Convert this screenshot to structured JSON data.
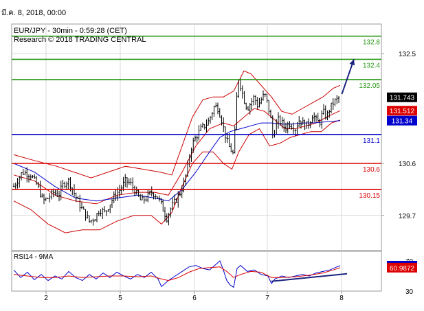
{
  "header": {
    "date_label": "มี.ค. 8, 2018, 00:00",
    "instrument": "EUR/JPY - 30min - 0:59:28 (CET)",
    "source": "Research © 2018 TRADING CENTRAL"
  },
  "chart_data": [
    {
      "type": "candlestick",
      "panel": "price",
      "x_labels": [
        "2",
        "5",
        "6",
        "7",
        "8"
      ],
      "y_ticks": [
        129.7,
        130.6,
        132.5
      ],
      "ylim": [
        129.2,
        132.8
      ],
      "grid": true,
      "current_price": {
        "label": "131.743",
        "value": 131.743,
        "color": "#000000"
      },
      "levels": [
        {
          "label": "132.8",
          "value": 132.8,
          "color": "#2a9a18",
          "label_color": "#2a9a18"
        },
        {
          "label": "132.4",
          "value": 132.4,
          "color": "#2a9a18",
          "label_color": "#2a9a18"
        },
        {
          "label": "132.05",
          "value": 132.05,
          "color": "#2a9a18",
          "label_color": "#2a9a18"
        },
        {
          "label": "131.1",
          "value": 131.1,
          "color": "#0000cc",
          "label_color": "#0000cc"
        },
        {
          "label": "130.6",
          "value": 130.6,
          "color": "#dd0000",
          "label_color": "#dd0000"
        },
        {
          "label": "130.15",
          "value": 130.15,
          "color": "#dd0000",
          "label_color": "#dd0000"
        }
      ],
      "indicator_badges": [
        {
          "label": "131.512",
          "value": 131.512,
          "color": "#dd0000"
        },
        {
          "label": "131.34",
          "value": 131.34,
          "color": "#0000cc"
        }
      ],
      "close_path": [
        [
          0,
          130.2
        ],
        [
          5,
          130.45
        ],
        [
          10,
          130.4
        ],
        [
          14,
          130.2
        ],
        [
          17,
          129.95
        ],
        [
          20,
          130.0
        ],
        [
          23,
          130.1
        ],
        [
          26,
          130.05
        ],
        [
          29,
          130.25
        ],
        [
          32,
          130.3
        ],
        [
          35,
          130.1
        ],
        [
          38,
          129.9
        ],
        [
          41,
          129.75
        ],
        [
          44,
          129.6
        ],
        [
          47,
          129.65
        ],
        [
          50,
          129.8
        ],
        [
          53,
          129.75
        ],
        [
          56,
          129.9
        ],
        [
          59,
          130.05
        ],
        [
          62,
          130.15
        ],
        [
          65,
          130.3
        ],
        [
          68,
          130.25
        ],
        [
          71,
          130.1
        ],
        [
          74,
          129.95
        ],
        [
          77,
          130.0
        ],
        [
          80,
          130.1
        ],
        [
          83,
          130.05
        ],
        [
          85,
          129.95
        ],
        [
          87,
          129.8
        ],
        [
          89,
          129.65
        ],
        [
          91,
          129.8
        ],
        [
          93,
          129.9
        ],
        [
          95,
          130.0
        ],
        [
          97,
          130.1
        ],
        [
          99,
          130.25
        ],
        [
          101,
          130.5
        ],
        [
          103,
          130.85
        ],
        [
          105,
          131.0
        ],
        [
          107,
          131.1
        ],
        [
          109,
          131.2
        ],
        [
          111,
          131.25
        ],
        [
          113,
          131.3
        ],
        [
          115,
          131.45
        ],
        [
          117,
          131.6
        ],
        [
          119,
          131.55
        ],
        [
          121,
          131.35
        ],
        [
          123,
          131.1
        ],
        [
          125,
          130.9
        ],
        [
          127,
          130.8
        ],
        [
          128,
          130.75
        ],
        [
          129,
          131.3
        ],
        [
          130,
          131.85
        ],
        [
          131,
          132.1
        ],
        [
          132,
          131.95
        ],
        [
          134,
          131.7
        ],
        [
          136,
          131.55
        ],
        [
          138,
          131.65
        ],
        [
          140,
          131.75
        ],
        [
          142,
          131.6
        ],
        [
          144,
          131.7
        ],
        [
          146,
          131.8
        ],
        [
          148,
          131.6
        ],
        [
          150,
          131.3
        ],
        [
          151,
          131.0
        ],
        [
          152,
          131.2
        ],
        [
          154,
          131.35
        ],
        [
          156,
          131.3
        ],
        [
          158,
          131.2
        ],
        [
          160,
          131.3
        ],
        [
          162,
          131.25
        ],
        [
          164,
          131.2
        ],
        [
          166,
          131.35
        ],
        [
          168,
          131.3
        ],
        [
          170,
          131.25
        ],
        [
          172,
          131.3
        ],
        [
          174,
          131.45
        ],
        [
          176,
          131.35
        ],
        [
          178,
          131.3
        ],
        [
          180,
          131.5
        ],
        [
          182,
          131.4
        ],
        [
          184,
          131.55
        ],
        [
          186,
          131.65
        ],
        [
          188,
          131.7
        ],
        [
          190,
          131.743
        ]
      ],
      "bollinger_upper": [
        [
          0,
          130.75
        ],
        [
          12,
          130.65
        ],
        [
          25,
          130.55
        ],
        [
          35,
          130.45
        ],
        [
          45,
          130.35
        ],
        [
          55,
          130.45
        ],
        [
          65,
          130.55
        ],
        [
          75,
          130.5
        ],
        [
          85,
          130.45
        ],
        [
          92,
          130.4
        ],
        [
          98,
          130.9
        ],
        [
          104,
          131.4
        ],
        [
          110,
          131.7
        ],
        [
          116,
          131.75
        ],
        [
          122,
          131.75
        ],
        [
          128,
          131.85
        ],
        [
          134,
          132.2
        ],
        [
          138,
          132.15
        ],
        [
          144,
          131.95
        ],
        [
          150,
          131.75
        ],
        [
          156,
          131.5
        ],
        [
          162,
          131.45
        ],
        [
          168,
          131.55
        ],
        [
          174,
          131.65
        ],
        [
          180,
          131.75
        ],
        [
          186,
          131.9
        ],
        [
          190,
          131.95
        ]
      ],
      "bollinger_lower": [
        [
          0,
          129.95
        ],
        [
          10,
          129.8
        ],
        [
          20,
          129.55
        ],
        [
          30,
          129.4
        ],
        [
          40,
          129.45
        ],
        [
          50,
          129.45
        ],
        [
          60,
          129.6
        ],
        [
          70,
          129.7
        ],
        [
          80,
          129.7
        ],
        [
          86,
          129.55
        ],
        [
          92,
          129.75
        ],
        [
          98,
          130.2
        ],
        [
          104,
          130.6
        ],
        [
          110,
          130.8
        ],
        [
          116,
          130.8
        ],
        [
          122,
          130.6
        ],
        [
          127,
          130.5
        ],
        [
          131,
          130.8
        ],
        [
          137,
          131.1
        ],
        [
          143,
          131.2
        ],
        [
          149,
          130.9
        ],
        [
          155,
          130.95
        ],
        [
          161,
          131.05
        ],
        [
          167,
          131.1
        ],
        [
          173,
          131.15
        ],
        [
          179,
          131.15
        ],
        [
          185,
          131.3
        ],
        [
          190,
          131.35
        ]
      ],
      "sma_red": [
        [
          0,
          130.4
        ],
        [
          12,
          130.3
        ],
        [
          24,
          130.05
        ],
        [
          36,
          129.95
        ],
        [
          48,
          129.9
        ],
        [
          60,
          130.05
        ],
        [
          72,
          130.1
        ],
        [
          82,
          130.1
        ],
        [
          90,
          130.05
        ],
        [
          98,
          130.45
        ],
        [
          106,
          130.9
        ],
        [
          114,
          131.2
        ],
        [
          122,
          131.3
        ],
        [
          128,
          131.25
        ],
        [
          134,
          131.4
        ],
        [
          140,
          131.55
        ],
        [
          146,
          131.5
        ],
        [
          152,
          131.35
        ],
        [
          158,
          131.2
        ],
        [
          164,
          131.2
        ],
        [
          170,
          131.25
        ],
        [
          176,
          131.3
        ],
        [
          182,
          131.4
        ],
        [
          190,
          131.512
        ]
      ],
      "sma_blue": [
        [
          0,
          130.6
        ],
        [
          12,
          130.45
        ],
        [
          24,
          130.2
        ],
        [
          36,
          130.0
        ],
        [
          48,
          129.95
        ],
        [
          60,
          130.0
        ],
        [
          72,
          130.05
        ],
        [
          82,
          130.0
        ],
        [
          90,
          129.95
        ],
        [
          98,
          130.15
        ],
        [
          106,
          130.45
        ],
        [
          114,
          130.8
        ],
        [
          120,
          131.05
        ],
        [
          126,
          131.15
        ],
        [
          132,
          131.2
        ],
        [
          138,
          131.25
        ],
        [
          144,
          131.3
        ],
        [
          150,
          131.3
        ],
        [
          156,
          131.28
        ],
        [
          162,
          131.28
        ],
        [
          168,
          131.3
        ],
        [
          174,
          131.3
        ],
        [
          182,
          131.32
        ],
        [
          190,
          131.34
        ]
      ],
      "arrow": {
        "from": [
          191,
          131.8
        ],
        "to": [
          198,
          132.4
        ],
        "color": "#1a237e"
      }
    },
    {
      "type": "line",
      "panel": "indicator",
      "title": "RSI14 - 9MA",
      "y_ticks": [
        30,
        70
      ],
      "ylim": [
        25,
        75
      ],
      "badges": [
        {
          "label": "63.6403",
          "value": 63.6403,
          "color": "#0000cc"
        },
        {
          "label": "60.9872",
          "value": 60.9872,
          "color": "#dd0000"
        }
      ],
      "series": [
        {
          "color": "#0000cc",
          "values": [
            [
              0,
              58
            ],
            [
              4,
              48
            ],
            [
              8,
              55
            ],
            [
              12,
              45
            ],
            [
              16,
              52
            ],
            [
              20,
              44
            ],
            [
              24,
              50
            ],
            [
              28,
              46
            ],
            [
              32,
              56
            ],
            [
              36,
              48
            ],
            [
              40,
              44
            ],
            [
              44,
              52
            ],
            [
              48,
              46
            ],
            [
              52,
              54
            ],
            [
              56,
              48
            ],
            [
              60,
              55
            ],
            [
              64,
              50
            ],
            [
              68,
              46
            ],
            [
              72,
              52
            ],
            [
              76,
              48
            ],
            [
              80,
              55
            ],
            [
              84,
              46
            ],
            [
              86,
              36
            ],
            [
              88,
              40
            ],
            [
              90,
              44
            ],
            [
              94,
              50
            ],
            [
              98,
              56
            ],
            [
              102,
              62
            ],
            [
              106,
              64
            ],
            [
              110,
              60
            ],
            [
              114,
              58
            ],
            [
              118,
              66
            ],
            [
              120,
              70
            ],
            [
              122,
              58
            ],
            [
              124,
              44
            ],
            [
              126,
              38
            ],
            [
              128,
              35
            ],
            [
              130,
              60
            ],
            [
              132,
              64
            ],
            [
              136,
              56
            ],
            [
              140,
              58
            ],
            [
              144,
              52
            ],
            [
              148,
              50
            ],
            [
              150,
              40
            ],
            [
              152,
              46
            ],
            [
              156,
              50
            ],
            [
              160,
              48
            ],
            [
              164,
              50
            ],
            [
              168,
              52
            ],
            [
              172,
              50
            ],
            [
              176,
              54
            ],
            [
              180,
              56
            ],
            [
              184,
              58
            ],
            [
              188,
              62
            ],
            [
              190,
              63.64
            ]
          ]
        },
        {
          "color": "#dd0000",
          "values": [
            [
              0,
              52
            ],
            [
              8,
              50
            ],
            [
              16,
              48
            ],
            [
              24,
              48
            ],
            [
              32,
              50
            ],
            [
              40,
              48
            ],
            [
              48,
              49
            ],
            [
              56,
              50
            ],
            [
              64,
              50
            ],
            [
              72,
              49
            ],
            [
              80,
              50
            ],
            [
              86,
              46
            ],
            [
              90,
              44
            ],
            [
              96,
              48
            ],
            [
              102,
              55
            ],
            [
              108,
              60
            ],
            [
              114,
              61
            ],
            [
              120,
              62
            ],
            [
              124,
              56
            ],
            [
              128,
              48
            ],
            [
              132,
              52
            ],
            [
              138,
              56
            ],
            [
              144,
              55
            ],
            [
              150,
              48
            ],
            [
              156,
              48
            ],
            [
              164,
              49
            ],
            [
              172,
              51
            ],
            [
              180,
              54
            ],
            [
              186,
              58
            ],
            [
              190,
              60.99
            ]
          ]
        }
      ],
      "trendline": {
        "from": [
          150,
          43
        ],
        "to": [
          194,
          53
        ],
        "color": "#1a237e"
      }
    }
  ]
}
